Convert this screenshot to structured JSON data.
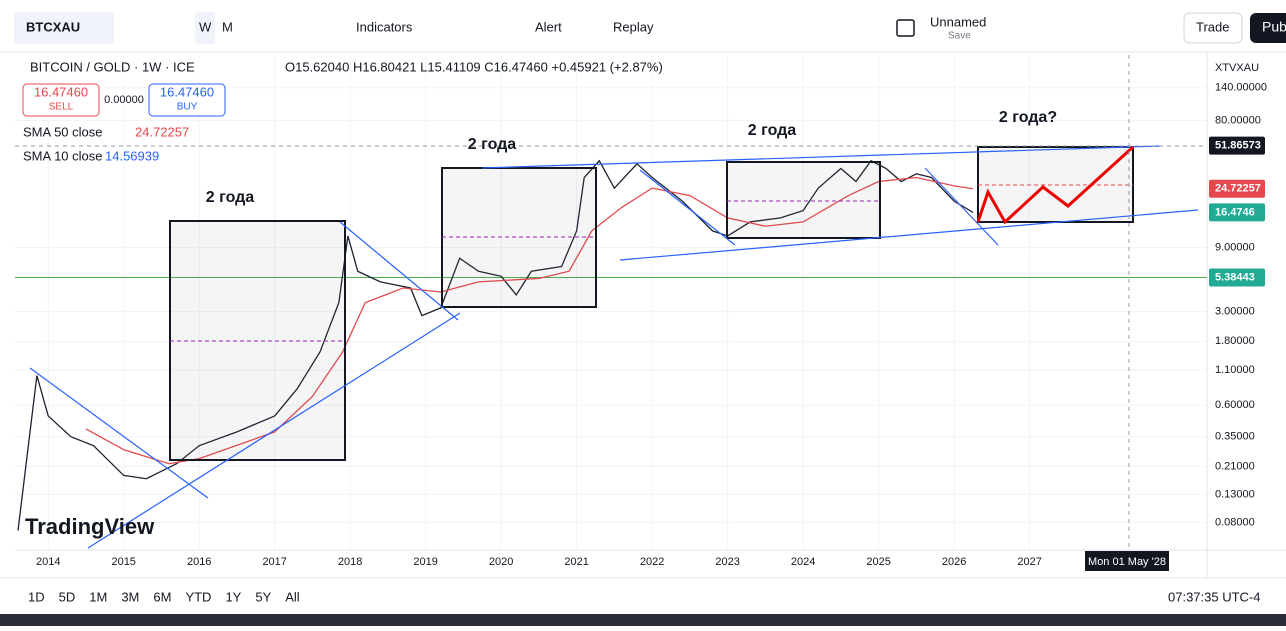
{
  "toolbar": {
    "symbol": "BTCXAU",
    "intervals": [
      "W",
      "M"
    ],
    "indicators": "Indicators",
    "alert": "Alert",
    "replay": "Replay",
    "layout_name": "Unnamed",
    "layout_save": "Save",
    "trade": "Trade",
    "publish": "Pub"
  },
  "legend": {
    "instrument": "BITCOIN / GOLD · 1W · ICE",
    "ohlc": "O15.62040 H16.80421 L15.41109 C16.47460 +0.45921 (+2.87%)",
    "sell_price": "16.47460",
    "sell": "SELL",
    "spread": "0.00000",
    "buy_price": "16.47460",
    "buy": "BUY",
    "sma10_name": "SMA 10 close",
    "sma10_value": "14.56939",
    "sma50_value": "24.72257"
  },
  "chart_data": {
    "type": "line",
    "symbol_label": "XTVXAU",
    "log_scale": true,
    "xlim": [
      2013.56,
      2029.35
    ],
    "xticks": [
      2014,
      2015,
      2016,
      2017,
      2018,
      2019,
      2020,
      2021,
      2022,
      2023,
      2024,
      2025,
      2026,
      2027
    ],
    "ylim": [
      0.05,
      246
    ],
    "yticks": [
      {
        "value": 140,
        "label": "140.00000"
      },
      {
        "value": 80,
        "label": "80.00000"
      },
      {
        "value": 9,
        "label": "9.00000"
      },
      {
        "value": 3,
        "label": "3.00000"
      },
      {
        "value": 1.8,
        "label": "1.80000"
      },
      {
        "value": 1.1,
        "label": "1.10000"
      },
      {
        "value": 0.6,
        "label": "0.60000"
      },
      {
        "value": 0.35,
        "label": "0.35000"
      },
      {
        "value": 0.21,
        "label": "0.21000"
      },
      {
        "value": 0.13,
        "label": "0.13000"
      },
      {
        "value": 0.08,
        "label": "0.08000"
      }
    ],
    "series": [
      {
        "color": "#1e2230",
        "x": [
          2013.6,
          2013.85,
          2014.0,
          2014.3,
          2014.6,
          2015.0,
          2015.3,
          2015.7,
          2016.0,
          2016.5,
          2017.0,
          2017.3,
          2017.6,
          2017.85,
          2017.97,
          2018.1,
          2018.4,
          2018.8,
          2018.95,
          2019.2,
          2019.45,
          2019.7,
          2020.0,
          2020.2,
          2020.4,
          2020.8,
          2021.0,
          2021.1,
          2021.3,
          2021.5,
          2021.8,
          2022.0,
          2022.4,
          2022.8,
          2023.0,
          2023.3,
          2023.7,
          2024.0,
          2024.2,
          2024.5,
          2024.7,
          2024.9,
          2025.1,
          2025.3,
          2025.5,
          2025.7,
          2026.0,
          2026.25
        ],
        "values": [
          0.07,
          1.0,
          0.5,
          0.35,
          0.3,
          0.18,
          0.17,
          0.22,
          0.3,
          0.38,
          0.5,
          0.8,
          1.5,
          3.5,
          11,
          6,
          5,
          4.5,
          2.8,
          3.2,
          7.5,
          6,
          5.5,
          4,
          6,
          6.5,
          12,
          30,
          40,
          25,
          38,
          30,
          20,
          12,
          11,
          14,
          15,
          17,
          25,
          35,
          28,
          40,
          35,
          28,
          32,
          30,
          20,
          16.4746
        ]
      },
      {
        "name": "SMA 50 close",
        "color": "#e5484d",
        "x": [
          2014.5,
          2015.0,
          2015.6,
          2016.0,
          2017.0,
          2017.5,
          2017.9,
          2018.2,
          2018.7,
          2019.2,
          2019.7,
          2020.5,
          2020.9,
          2021.2,
          2021.6,
          2022.0,
          2022.5,
          2023.0,
          2023.5,
          2024.0,
          2024.6,
          2025.0,
          2025.5,
          2026.0,
          2026.25
        ],
        "values": [
          0.4,
          0.28,
          0.22,
          0.24,
          0.38,
          0.7,
          1.5,
          3.5,
          4.5,
          4.2,
          5,
          5.3,
          6,
          12,
          18,
          25,
          22,
          15,
          13,
          14,
          22,
          28,
          30,
          26,
          24.72257
        ]
      }
    ],
    "price_labels": [
      {
        "value": 51.86573,
        "color": "#131722"
      },
      {
        "value": 24.72257,
        "color": "#e5484d"
      },
      {
        "value": 16.4746,
        "color": "#22ab94"
      },
      {
        "value": 5.38443,
        "color": "#22ab94"
      }
    ],
    "hline": 5.38443,
    "annotations": [
      "2 года",
      "2 года",
      "2 года",
      "2 года?"
    ],
    "crosshair_date": "Mon 01 May '28"
  },
  "watermark": "TradingView",
  "timeframes": [
    "1D",
    "5D",
    "1M",
    "3M",
    "6M",
    "YTD",
    "1Y",
    "5Y",
    "All"
  ],
  "clock": "07:37:35 UTC-4"
}
